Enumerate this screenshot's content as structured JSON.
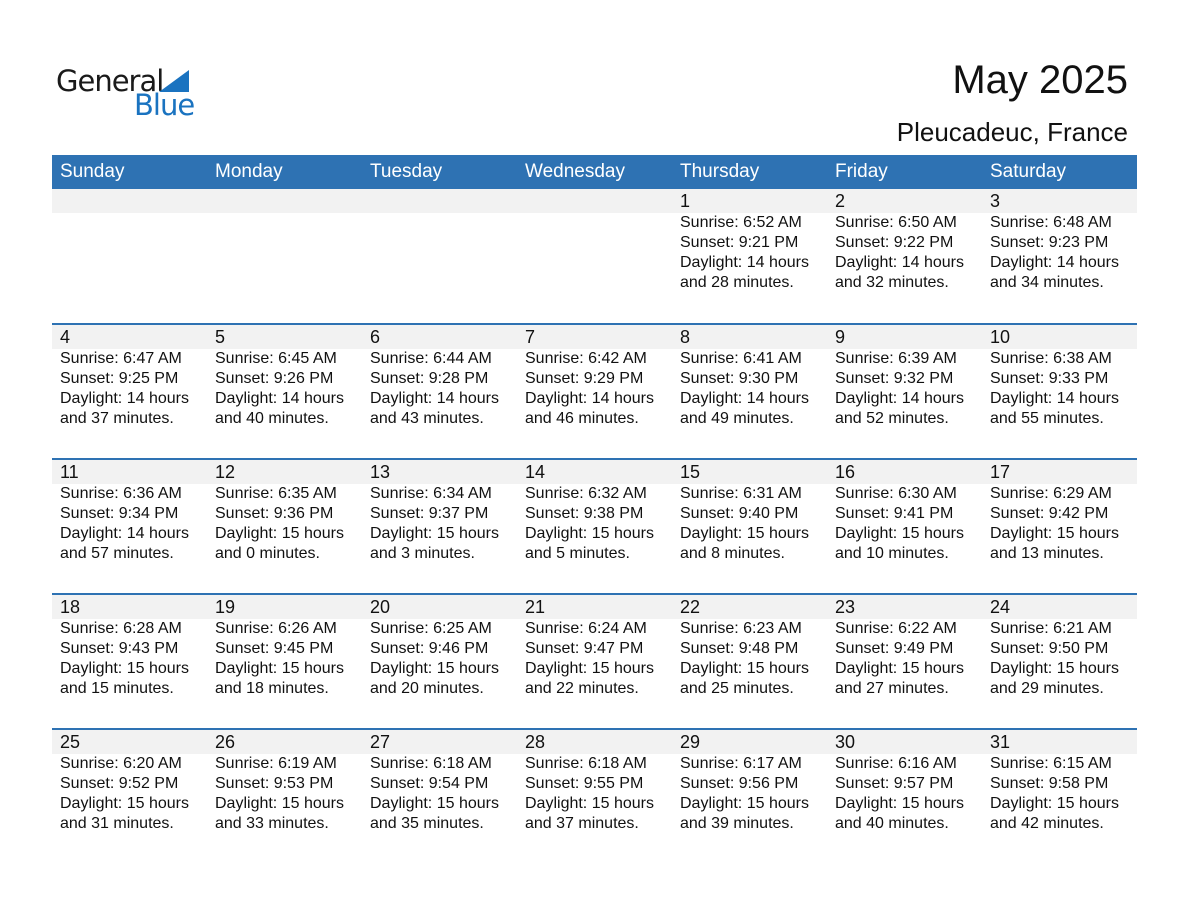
{
  "logo": {
    "line1": "General",
    "line2": "Blue"
  },
  "title": "May 2025",
  "location": "Pleucadeuc, France",
  "colors": {
    "header": "#2e72b3",
    "band": "#f2f2f2",
    "logo_blue": "#1a73c0"
  },
  "weekdays": [
    "Sunday",
    "Monday",
    "Tuesday",
    "Wednesday",
    "Thursday",
    "Friday",
    "Saturday"
  ],
  "first_weekday_index": 4,
  "days": [
    [
      "1",
      "6:52 AM",
      "9:21 PM",
      "14",
      "28"
    ],
    [
      "2",
      "6:50 AM",
      "9:22 PM",
      "14",
      "32"
    ],
    [
      "3",
      "6:48 AM",
      "9:23 PM",
      "14",
      "34"
    ],
    [
      "4",
      "6:47 AM",
      "9:25 PM",
      "14",
      "37"
    ],
    [
      "5",
      "6:45 AM",
      "9:26 PM",
      "14",
      "40"
    ],
    [
      "6",
      "6:44 AM",
      "9:28 PM",
      "14",
      "43"
    ],
    [
      "7",
      "6:42 AM",
      "9:29 PM",
      "14",
      "46"
    ],
    [
      "8",
      "6:41 AM",
      "9:30 PM",
      "14",
      "49"
    ],
    [
      "9",
      "6:39 AM",
      "9:32 PM",
      "14",
      "52"
    ],
    [
      "10",
      "6:38 AM",
      "9:33 PM",
      "14",
      "55"
    ],
    [
      "11",
      "6:36 AM",
      "9:34 PM",
      "14",
      "57"
    ],
    [
      "12",
      "6:35 AM",
      "9:36 PM",
      "15",
      "0"
    ],
    [
      "13",
      "6:34 AM",
      "9:37 PM",
      "15",
      "3"
    ],
    [
      "14",
      "6:32 AM",
      "9:38 PM",
      "15",
      "5"
    ],
    [
      "15",
      "6:31 AM",
      "9:40 PM",
      "15",
      "8"
    ],
    [
      "16",
      "6:30 AM",
      "9:41 PM",
      "15",
      "10"
    ],
    [
      "17",
      "6:29 AM",
      "9:42 PM",
      "15",
      "13"
    ],
    [
      "18",
      "6:28 AM",
      "9:43 PM",
      "15",
      "15"
    ],
    [
      "19",
      "6:26 AM",
      "9:45 PM",
      "15",
      "18"
    ],
    [
      "20",
      "6:25 AM",
      "9:46 PM",
      "15",
      "20"
    ],
    [
      "21",
      "6:24 AM",
      "9:47 PM",
      "15",
      "22"
    ],
    [
      "22",
      "6:23 AM",
      "9:48 PM",
      "15",
      "25"
    ],
    [
      "23",
      "6:22 AM",
      "9:49 PM",
      "15",
      "27"
    ],
    [
      "24",
      "6:21 AM",
      "9:50 PM",
      "15",
      "29"
    ],
    [
      "25",
      "6:20 AM",
      "9:52 PM",
      "15",
      "31"
    ],
    [
      "26",
      "6:19 AM",
      "9:53 PM",
      "15",
      "33"
    ],
    [
      "27",
      "6:18 AM",
      "9:54 PM",
      "15",
      "35"
    ],
    [
      "28",
      "6:18 AM",
      "9:55 PM",
      "15",
      "37"
    ],
    [
      "29",
      "6:17 AM",
      "9:56 PM",
      "15",
      "39"
    ],
    [
      "30",
      "6:16 AM",
      "9:57 PM",
      "15",
      "40"
    ],
    [
      "31",
      "6:15 AM",
      "9:58 PM",
      "15",
      "42"
    ]
  ],
  "labels": {
    "sunrise": "Sunrise: ",
    "sunset": "Sunset: ",
    "daylight": "Daylight: ",
    "hours": " hours",
    "and": "and ",
    "minutes": " minutes."
  }
}
